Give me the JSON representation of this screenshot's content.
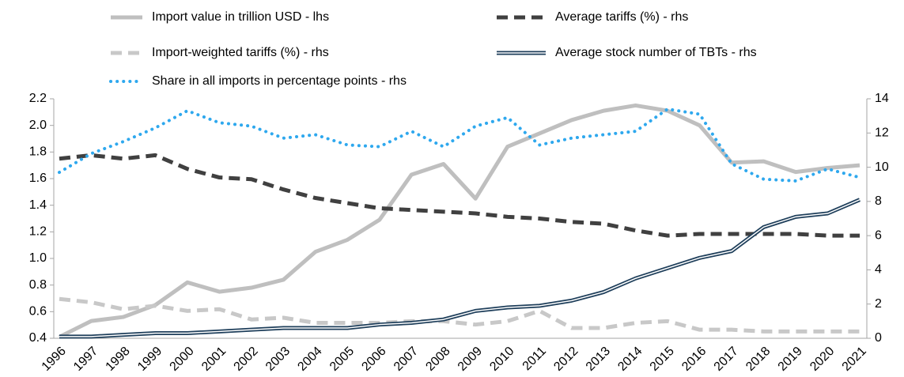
{
  "chart_data": {
    "type": "line",
    "categories": [
      "1996",
      "1997",
      "1998",
      "1999",
      "2000",
      "2001",
      "2002",
      "2003",
      "2004",
      "2005",
      "2006",
      "2007",
      "2008",
      "2009",
      "2010",
      "2011",
      "2012",
      "2013",
      "2014",
      "2015",
      "2016",
      "2017",
      "2018",
      "2019",
      "2020",
      "2021"
    ],
    "series": [
      {
        "name": "Import value in trillion USD - lhs",
        "color": "#bfbfbf",
        "style": "solid",
        "axis": "y",
        "values": [
          0.41,
          0.53,
          0.56,
          0.65,
          0.82,
          0.75,
          0.78,
          0.84,
          1.05,
          1.14,
          1.29,
          1.63,
          1.71,
          1.45,
          1.84,
          1.94,
          2.04,
          2.11,
          2.15,
          2.11,
          2.0,
          1.72,
          1.73,
          1.65,
          1.68,
          1.7
        ]
      },
      {
        "name": "Average tariffs (%) - rhs",
        "color": "#404040",
        "style": "dashed",
        "axis": "y2",
        "values": [
          10.5,
          10.7,
          10.5,
          10.7,
          9.9,
          9.4,
          9.3,
          8.7,
          8.2,
          7.9,
          7.6,
          7.5,
          7.4,
          7.3,
          7.1,
          7.0,
          6.8,
          6.7,
          6.3,
          6.0,
          6.1,
          6.1,
          6.1,
          6.1,
          6.0,
          6.0
        ]
      },
      {
        "name": "Import-weighted tariffs (%) - rhs",
        "color": "#c8c8c8",
        "style": "dashed",
        "axis": "y2",
        "values": [
          2.3,
          2.1,
          1.7,
          1.9,
          1.6,
          1.7,
          1.1,
          1.2,
          0.9,
          0.9,
          0.9,
          1.0,
          1.0,
          0.8,
          1.0,
          1.6,
          0.6,
          0.6,
          0.9,
          1.0,
          0.5,
          0.5,
          0.4,
          0.4,
          0.4,
          0.4
        ]
      },
      {
        "name": "Average stock number of TBTs - rhs",
        "color": "#1f3f5b",
        "style": "double",
        "axis": "y2",
        "values": [
          0.1,
          0.1,
          0.2,
          0.3,
          0.3,
          0.4,
          0.5,
          0.6,
          0.6,
          0.6,
          0.8,
          0.9,
          1.1,
          1.6,
          1.8,
          1.9,
          2.2,
          2.7,
          3.5,
          4.1,
          4.7,
          5.1,
          6.5,
          7.1,
          7.3,
          8.1
        ]
      },
      {
        "name": "Share in all imports in percentage points - rhs",
        "color": "#2ea8ee",
        "style": "dotted",
        "axis": "y2",
        "values": [
          9.7,
          10.8,
          11.5,
          12.3,
          13.3,
          12.6,
          12.4,
          11.7,
          11.9,
          11.3,
          11.2,
          12.1,
          11.2,
          12.4,
          12.9,
          11.3,
          11.7,
          11.9,
          12.1,
          13.4,
          13.1,
          10.2,
          9.3,
          9.2,
          9.9,
          9.4
        ]
      }
    ],
    "ylim": [
      0.4,
      2.2
    ],
    "yticks": [
      0.4,
      0.6,
      0.8,
      {
        "value": 1,
        "label": "1.0"
      },
      1.2,
      1.4,
      1.6,
      1.8,
      {
        "value": 2,
        "label": "2.0"
      },
      2.2
    ],
    "y2lim": [
      0,
      14
    ],
    "y2ticks": [
      0,
      2,
      4,
      6,
      8,
      10,
      12,
      14
    ],
    "grid": false
  }
}
